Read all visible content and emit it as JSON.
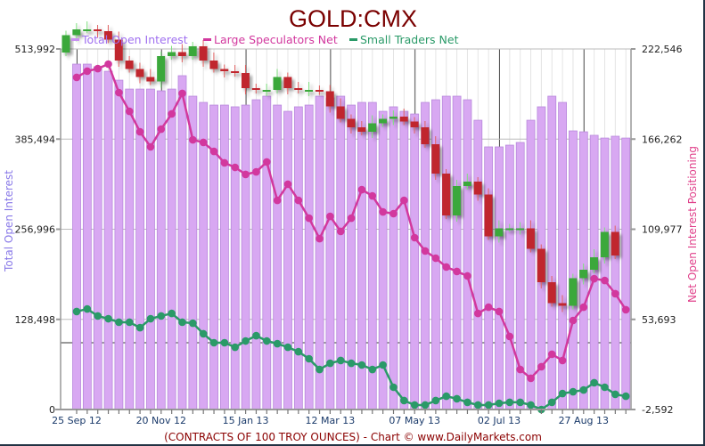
{
  "chart_data": {
    "type": "bar",
    "title": "GOLD:CMX",
    "caption": "(CONTRACTS OF 100 TROY OUNCES)  - Chart © www.DailyMarkets.com",
    "ylabel": "Total Open Interest",
    "y2label": "Net Open Interest Positioning",
    "ylim": [
      0,
      513992
    ],
    "y2lim": [
      -2592,
      222546
    ],
    "yticks": [
      "513,992",
      "385,494",
      "256,996",
      "128,498",
      "0"
    ],
    "y2ticks": [
      "222,546",
      "166,262",
      "109,977",
      "53,693",
      "-2,592"
    ],
    "xticks": [
      "25 Sep 12",
      "20 Nov 12",
      "15 Jan 13",
      "12 Mar 13",
      "07 May 13",
      "02 Jul 13",
      "27 Aug 13"
    ],
    "xtick_week_index": [
      0,
      8,
      16,
      24,
      32,
      40,
      48
    ],
    "legend": [
      "Total Open Interest",
      "Large Speculators Net",
      "Small Traders Net"
    ],
    "legend_placement": "top-left",
    "colors": {
      "open_interest": "#d8a8f2",
      "open_interest_edge": "#b888dc",
      "large_specs": "#d2389e",
      "small_traders": "#2a9a68",
      "candle_up": "#3aa83a",
      "candle_down": "#c0282e",
      "title": "#7a0000",
      "caption": "#8b0000",
      "left_label": "#8878e8",
      "right_label": "#e0408a"
    },
    "series": [
      {
        "name": "Total Open Interest",
        "axis": "left",
        "kind": "bar",
        "values": [
          492400,
          492400,
          488600,
          482200,
          469500,
          456800,
          456800,
          456800,
          454300,
          456800,
          475900,
          446700,
          437800,
          434000,
          434000,
          431500,
          434000,
          441600,
          446700,
          434000,
          425100,
          431500,
          434000,
          446700,
          444200,
          446700,
          434000,
          437800,
          437800,
          425100,
          431500,
          425100,
          421300,
          437800,
          441600,
          446700,
          446700,
          441600,
          412400,
          374400,
          374400,
          376900,
          380700,
          412400,
          431500,
          446700,
          437800,
          397200,
          395900,
          390900,
          387000,
          389600,
          387000
        ]
      },
      {
        "name": "Large Speculators Net",
        "axis": "right",
        "kind": "line",
        "values": [
          204800,
          208700,
          210300,
          213100,
          195300,
          183600,
          170800,
          161400,
          172500,
          182000,
          194800,
          165800,
          164200,
          158600,
          151400,
          148600,
          144200,
          145800,
          152000,
          128000,
          138100,
          128000,
          116900,
          104100,
          118000,
          108600,
          116900,
          134700,
          130800,
          120800,
          119700,
          128000,
          104700,
          96400,
          91900,
          86400,
          83600,
          80800,
          57400,
          61300,
          58600,
          43000,
          22400,
          16900,
          24100,
          31900,
          28000,
          53000,
          61300,
          79100,
          78000,
          69700,
          59700
        ]
      },
      {
        "name": "Small Traders Net",
        "axis": "right",
        "kind": "line",
        "values": [
          58600,
          60200,
          55800,
          54100,
          51900,
          51900,
          48500,
          54100,
          55800,
          57400,
          51900,
          51300,
          44700,
          39100,
          39100,
          36300,
          40200,
          43500,
          40200,
          38500,
          36300,
          33500,
          29100,
          22400,
          26300,
          28000,
          26300,
          25200,
          22400,
          25200,
          11300,
          3000,
          200,
          200,
          3000,
          5700,
          4100,
          1900,
          200,
          200,
          1300,
          1900,
          1900,
          200,
          -2600,
          1900,
          7400,
          8500,
          9600,
          14100,
          11300,
          6900,
          5700
        ]
      }
    ],
    "price_candles": {
      "note_scale": [
        1150,
        1830
      ],
      "open0": 1752,
      "closes": [
        1791,
        1804,
        1804,
        1800,
        1781,
        1734,
        1715,
        1697,
        1687,
        1744,
        1753,
        1744,
        1766,
        1734,
        1715,
        1710,
        1706,
        1672,
        1668,
        1668,
        1697,
        1672,
        1668,
        1668,
        1665,
        1631,
        1603,
        1584,
        1574,
        1593,
        1603,
        1608,
        1597,
        1584,
        1546,
        1480,
        1386,
        1452,
        1462,
        1433,
        1339,
        1357,
        1357,
        1357,
        1311,
        1236,
        1189,
        1183,
        1245,
        1264,
        1292,
        1349,
        1296
      ]
    }
  }
}
